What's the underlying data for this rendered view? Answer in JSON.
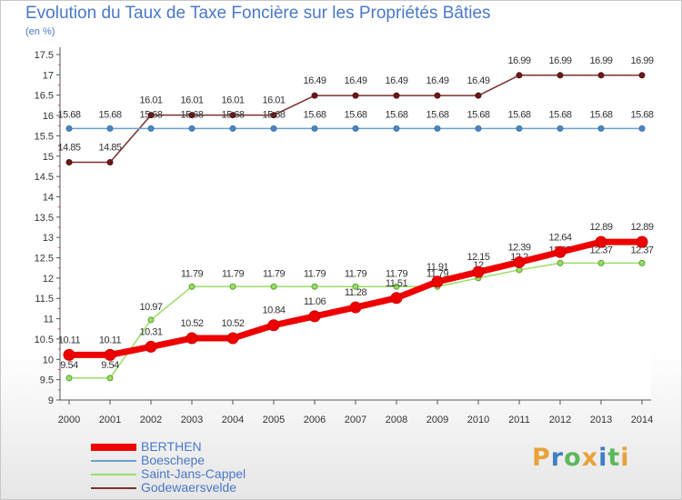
{
  "title": "Evolution du Taux de Taxe Foncière sur les Propriétés Bâties",
  "unit_label": "(en %)",
  "logo": {
    "text": "Proxiti",
    "colors": [
      "#e8a23a",
      "#3f7fc4",
      "#5cb85c",
      "#e8a23a",
      "#3f7fc4",
      "#5cb85c",
      "#e8a23a"
    ]
  },
  "chart_data": {
    "type": "line",
    "title": "Evolution du Taux de Taxe Foncière sur les Propriétés Bâties",
    "ylabel": "(en %)",
    "xlabel": "",
    "ylim": [
      9,
      17.5
    ],
    "yticks": [
      "9",
      "9.5",
      "10",
      "10.5",
      "11",
      "11.5",
      "12",
      "12.5",
      "13",
      "13.5",
      "14",
      "14.5",
      "15",
      "15.5",
      "16",
      "16.5",
      "17",
      "17.5"
    ],
    "x": [
      "2000",
      "2001",
      "2002",
      "2003",
      "2004",
      "2005",
      "2006",
      "2007",
      "2008",
      "2009",
      "2010",
      "2011",
      "2012",
      "2013",
      "2014"
    ],
    "grid": false,
    "series": [
      {
        "name": "Godewaersvelde",
        "color": "#7a3030",
        "labels_show": [
          "14.85",
          "14.85",
          "16.01",
          "16.01",
          "16.01",
          "16.01",
          "16.49",
          "16.49",
          "16.49",
          "16.49",
          "16.49",
          "16.99",
          "16.99",
          "16.99",
          "16.99"
        ],
        "values": [
          14.85,
          14.85,
          16.01,
          16.01,
          16.01,
          16.01,
          16.49,
          16.49,
          16.49,
          16.49,
          16.49,
          16.99,
          16.99,
          16.99,
          16.99
        ]
      },
      {
        "name": "Boeschepe",
        "color": "#6aa0d0",
        "labels_show": [
          "15.68",
          "15.68",
          "15.68",
          "15.68",
          "15.68",
          "15.68",
          "15.68",
          "15.68",
          "15.68",
          "15.68",
          "15.68",
          "15.68",
          "15.68",
          "15.68",
          "15.68"
        ],
        "values": [
          15.68,
          15.68,
          15.68,
          15.68,
          15.68,
          15.68,
          15.68,
          15.68,
          15.68,
          15.68,
          15.68,
          15.68,
          15.68,
          15.68,
          15.68
        ]
      },
      {
        "name": "Saint-Jans-Cappel",
        "color": "#99dd66",
        "labels_show": [
          "9.54",
          "9.54",
          "10.97",
          "11.79",
          "11.79",
          "11.79",
          "11.79",
          "11.79",
          "11.79",
          "11.79",
          "12",
          "12.2",
          "12.37",
          "12.37",
          "12.37"
        ],
        "values": [
          9.54,
          9.54,
          10.97,
          11.79,
          11.79,
          11.79,
          11.79,
          11.79,
          11.79,
          11.79,
          12.0,
          12.2,
          12.37,
          12.37,
          12.37
        ]
      },
      {
        "name": "BERTHEN",
        "color": "#ee0000",
        "labels_show": [
          "10.11",
          "10.11",
          "10.31",
          "10.52",
          "10.52",
          "10.84",
          "11.06",
          "11.28",
          "11.51",
          "11.91",
          "12.15",
          "12.39",
          "12.64",
          "12.89",
          "12.89"
        ],
        "values": [
          10.11,
          10.11,
          10.31,
          10.52,
          10.52,
          10.84,
          11.06,
          11.28,
          11.51,
          11.91,
          12.15,
          12.39,
          12.64,
          12.89,
          12.89
        ]
      }
    ],
    "legend": [
      "BERTHEN",
      "Boeschepe",
      "Saint-Jans-Cappel",
      "Godewaersvelde"
    ],
    "legend_position": "bottom-left"
  }
}
